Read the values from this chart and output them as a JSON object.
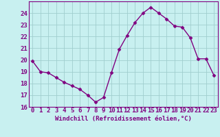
{
  "x": [
    0,
    1,
    2,
    3,
    4,
    5,
    6,
    7,
    8,
    9,
    10,
    11,
    12,
    13,
    14,
    15,
    16,
    17,
    18,
    19,
    20,
    21,
    22,
    23
  ],
  "y": [
    19.9,
    19.0,
    18.9,
    18.5,
    18.1,
    17.8,
    17.5,
    17.0,
    16.4,
    16.8,
    18.9,
    20.9,
    22.1,
    23.2,
    24.0,
    24.5,
    24.0,
    23.5,
    22.9,
    22.8,
    21.9,
    20.1,
    20.1,
    18.7
  ],
  "line_color": "#800080",
  "marker": "D",
  "marker_size": 2.5,
  "bg_color": "#c8f0f0",
  "grid_color": "#a0cece",
  "xlabel": "Windchill (Refroidissement éolien,°C)",
  "ylim": [
    16,
    25
  ],
  "xlim": [
    -0.5,
    23.5
  ],
  "yticks": [
    16,
    17,
    18,
    19,
    20,
    21,
    22,
    23,
    24
  ],
  "xticks": [
    0,
    1,
    2,
    3,
    4,
    5,
    6,
    7,
    8,
    9,
    10,
    11,
    12,
    13,
    14,
    15,
    16,
    17,
    18,
    19,
    20,
    21,
    22,
    23
  ],
  "font_color": "#800080",
  "font_size": 6.5,
  "xlabel_fontsize": 6.5,
  "line_width": 1.0
}
